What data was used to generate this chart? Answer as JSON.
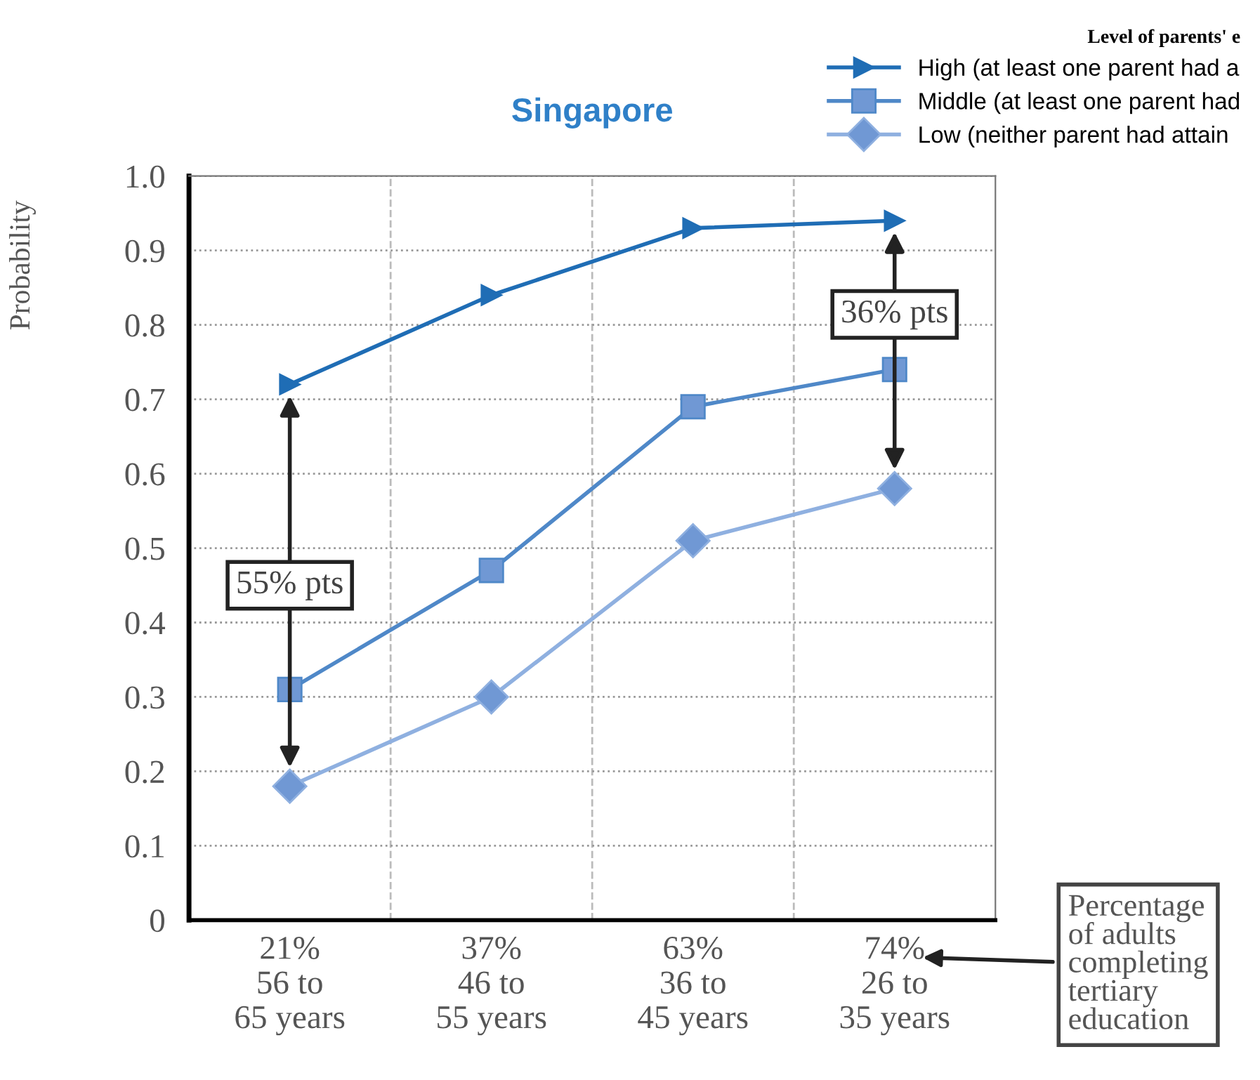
{
  "chart_data": {
    "type": "line",
    "title": "Singapore",
    "ylabel": "Probability",
    "legend_title": "Level of parents' e",
    "categories": [
      "21%\n56 to\n65 years",
      "37%\n46 to\n55 years",
      "63%\n36 to\n45 years",
      "74%\n26 to\n35 years"
    ],
    "series": [
      {
        "name": "High (at least one parent had a",
        "color": "#1f6db5",
        "marker": "triangle",
        "values": [
          0.72,
          0.84,
          0.93,
          0.94
        ]
      },
      {
        "name": "Middle (at least one parent had",
        "color": "#4f88c8",
        "marker": "square",
        "values": [
          0.31,
          0.47,
          0.69,
          0.74
        ]
      },
      {
        "name": "Low (neither parent had attain",
        "color": "#8fb0e0",
        "marker": "diamond",
        "values": [
          0.18,
          0.3,
          0.51,
          0.58
        ]
      }
    ],
    "ylim": [
      0,
      1.0
    ],
    "yticks": [
      0,
      0.1,
      0.2,
      0.3,
      0.4,
      0.5,
      0.6,
      0.7,
      0.8,
      0.9,
      {
        "value": 1.0,
        "label": "1.0"
      }
    ],
    "grid": true,
    "legend": "top right",
    "line_style": "solid",
    "annotations": [
      "55% pts",
      "36% pts",
      "Percentage\nof adults\ncompleting\ntertiary\neducation"
    ]
  }
}
